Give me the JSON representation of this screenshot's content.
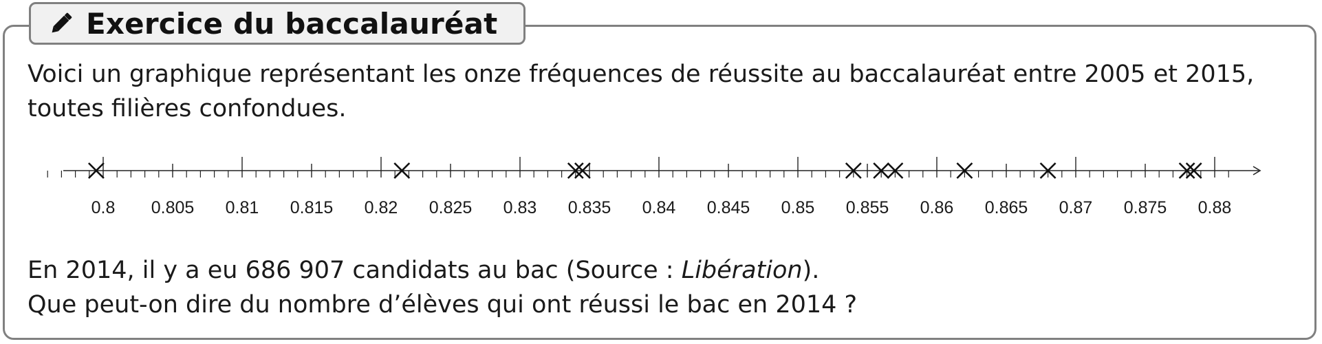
{
  "header": {
    "icon": "pencil-icon",
    "title": "Exercice du baccalauréat"
  },
  "intro": {
    "line1": "Voici un graphique représentant les onze fréquences de réussite au baccalauréat entre 2005 et 2015,",
    "line2": "toutes filières confondues."
  },
  "question": {
    "line1_before": "En 2014, il y a eu 686 907 candidats au bac (Source : ",
    "line1_source": "Libération",
    "line1_after": ").",
    "line2": "Que peut-on dire du nombre d’élèves qui ont réussi le bac en 2014 ?"
  },
  "chart_data": {
    "type": "scatter",
    "title": "",
    "xlabel": "",
    "ylabel": "",
    "xlim": [
      0.7955,
      0.8815
    ],
    "major_step": 0.005,
    "minor_step": 0.001,
    "tick_labels": [
      "0.8",
      "0.805",
      "0.81",
      "0.815",
      "0.82",
      "0.825",
      "0.83",
      "0.835",
      "0.84",
      "0.845",
      "0.85",
      "0.855",
      "0.86",
      "0.865",
      "0.87",
      "0.875",
      "0.88"
    ],
    "tick_values": [
      0.8,
      0.805,
      0.81,
      0.815,
      0.82,
      0.825,
      0.83,
      0.835,
      0.84,
      0.845,
      0.85,
      0.855,
      0.86,
      0.865,
      0.87,
      0.875,
      0.88
    ],
    "marker": "cross",
    "series": [
      {
        "values": [
          0.7995,
          0.8215,
          0.834,
          0.8345,
          0.854,
          0.856,
          0.857,
          0.862,
          0.868,
          0.878,
          0.8785
        ]
      }
    ],
    "grid": false,
    "legend": "none"
  }
}
